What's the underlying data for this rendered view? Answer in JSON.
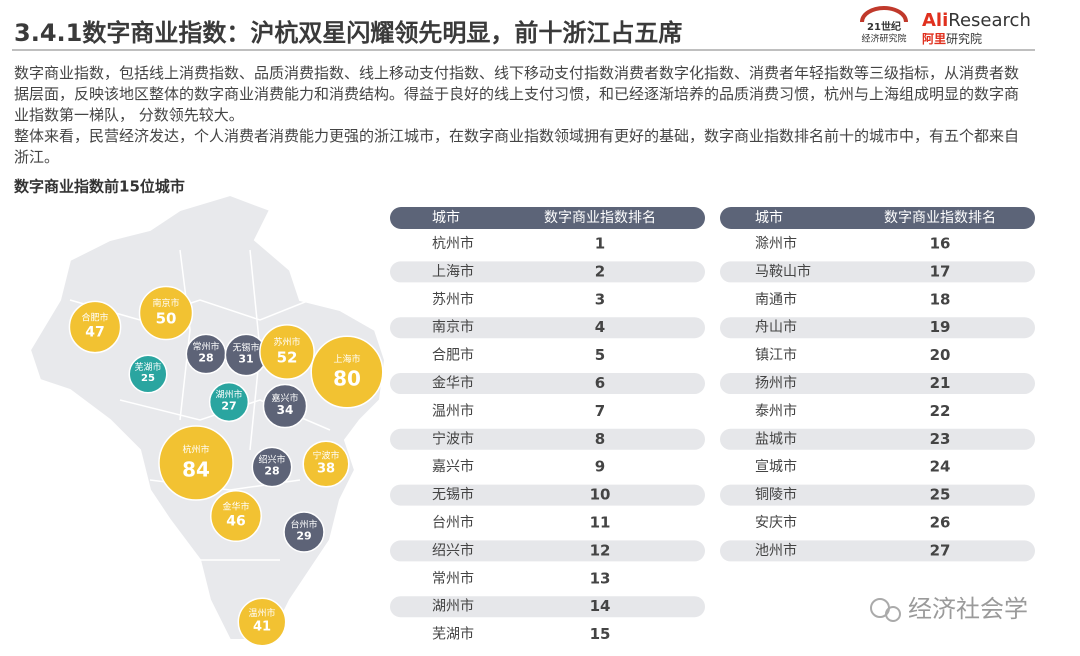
{
  "header": {
    "title": "3.4.1数字商业指数：沪杭双星闪耀领先明显，前十浙江占五席",
    "logo_21": [
      "21世纪",
      "经济研究院"
    ],
    "logo_ali": [
      "Ali",
      "Research",
      "阿里",
      "研究院"
    ]
  },
  "paragraphs": [
    "数字商业指数，包括线上消费指数、品质消费指数、线上移动支付指数、线下移动支付指数消费者数字化指数、消费者年轻指数等三级指标，从消费者数据层面，反映该地区整体的数字商业消费能力和消费结构。得益于良好的线上支付习惯，和已经逐渐培养的品质消费习惯，杭州与上海组成明显的数字商业指数第一梯队， 分数领先较大。",
    "整体来看，民营经济发达，个人消费者消费能力更强的浙江城市，在数字商业指数领域拥有更好的基础，数字商业指数排名前十的城市中，有五个都来自浙江。"
  ],
  "map": {
    "title": "数字商业指数前15位城市",
    "bubbles": [
      {
        "name": "合肥市",
        "value": 47,
        "color": "#f2c232"
      },
      {
        "name": "南京市",
        "value": 50,
        "color": "#f2c232"
      },
      {
        "name": "常州市",
        "value": 28,
        "color": "#5d6377"
      },
      {
        "name": "无锡市",
        "value": 31,
        "color": "#5d6377"
      },
      {
        "name": "苏州市",
        "value": 52,
        "color": "#f2c232"
      },
      {
        "name": "上海市",
        "value": 80,
        "color": "#f2c232"
      },
      {
        "name": "芜湖市",
        "value": 25,
        "color": "#2aa5a0"
      },
      {
        "name": "湖州市",
        "value": 27,
        "color": "#2aa5a0"
      },
      {
        "name": "嘉兴市",
        "value": 34,
        "color": "#5d6377"
      },
      {
        "name": "杭州市",
        "value": 84,
        "color": "#f2c232"
      },
      {
        "name": "绍兴市",
        "value": 28,
        "color": "#5d6377"
      },
      {
        "name": "宁波市",
        "value": 38,
        "color": "#f2c232"
      },
      {
        "name": "金华市",
        "value": 46,
        "color": "#f2c232"
      },
      {
        "name": "台州市",
        "value": 29,
        "color": "#5d6377"
      },
      {
        "name": "温州市",
        "value": 41,
        "color": "#f2c232"
      }
    ]
  },
  "tables": [
    {
      "header": [
        "城市",
        "数字商业指数排名"
      ],
      "rows": [
        [
          "杭州市",
          1
        ],
        [
          "上海市",
          2
        ],
        [
          "苏州市",
          3
        ],
        [
          "南京市",
          4
        ],
        [
          "合肥市",
          5
        ],
        [
          "金华市",
          6
        ],
        [
          "温州市",
          7
        ],
        [
          "宁波市",
          8
        ],
        [
          "嘉兴市",
          9
        ],
        [
          "无锡市",
          10
        ],
        [
          "台州市",
          11
        ],
        [
          "绍兴市",
          12
        ],
        [
          "常州市",
          13
        ],
        [
          "湖州市",
          14
        ],
        [
          "芜湖市",
          15
        ]
      ]
    },
    {
      "header": [
        "城市",
        "数字商业指数排名"
      ],
      "rows": [
        [
          "滁州市",
          16
        ],
        [
          "马鞍山市",
          17
        ],
        [
          "南通市",
          18
        ],
        [
          "舟山市",
          19
        ],
        [
          "镇江市",
          20
        ],
        [
          "扬州市",
          21
        ],
        [
          "泰州市",
          22
        ],
        [
          "盐城市",
          23
        ],
        [
          "宣城市",
          24
        ],
        [
          "铜陵市",
          25
        ],
        [
          "安庆市",
          26
        ],
        [
          "池州市",
          27
        ]
      ]
    }
  ],
  "watermark": "经济社会学"
}
